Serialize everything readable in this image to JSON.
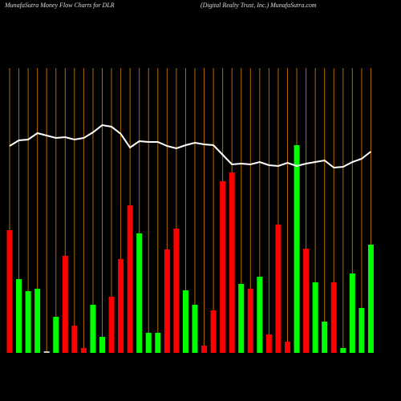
{
  "chart_data": {
    "type": "bar",
    "title": "MunafaSutra  Money Flow  Charts for DLR",
    "subtitle": "(Digital Realty Trust,  Inc.) MunafaSutra.com",
    "values": [
      153,
      92,
      77,
      80,
      2,
      45,
      121,
      34,
      6,
      60,
      20,
      70,
      117,
      184,
      149,
      25,
      25,
      129,
      155,
      78,
      60,
      9,
      53,
      214,
      225,
      86,
      80,
      95,
      23,
      160,
      14,
      259,
      130,
      88,
      39,
      88,
      6,
      99,
      56,
      135
    ],
    "colors": [
      "#ff0000",
      "#00ff00",
      "#00ff00",
      "#00ff00",
      "#cccccc",
      "#00ff00",
      "#ff0000",
      "#ff0000",
      "#ff0000",
      "#00ff00",
      "#00ff00",
      "#ff0000",
      "#ff0000",
      "#ff0000",
      "#00ff00",
      "#00ff00",
      "#00ff00",
      "#ff0000",
      "#ff0000",
      "#00ff00",
      "#00ff00",
      "#ff0000",
      "#ff0000",
      "#ff0000",
      "#ff0000",
      "#00ff00",
      "#ff0000",
      "#00ff00",
      "#ff0000",
      "#ff0000",
      "#ff0000",
      "#00ff00",
      "#ff0000",
      "#00ff00",
      "#00ff00",
      "#ff0000",
      "#00ff00",
      "#00ff00",
      "#00ff00",
      "#00ff00"
    ],
    "line_values": [
      258,
      265,
      266,
      274,
      271,
      268,
      269,
      266,
      268,
      275,
      284,
      282,
      273,
      256,
      264,
      263,
      263,
      258,
      255,
      259,
      262,
      260,
      259,
      247,
      235,
      236,
      235,
      238,
      234,
      233,
      237,
      233,
      236,
      238,
      240,
      231,
      232,
      238,
      242,
      251
    ],
    "line_color": "#ffffff",
    "ylim": [
      0,
      300
    ]
  }
}
